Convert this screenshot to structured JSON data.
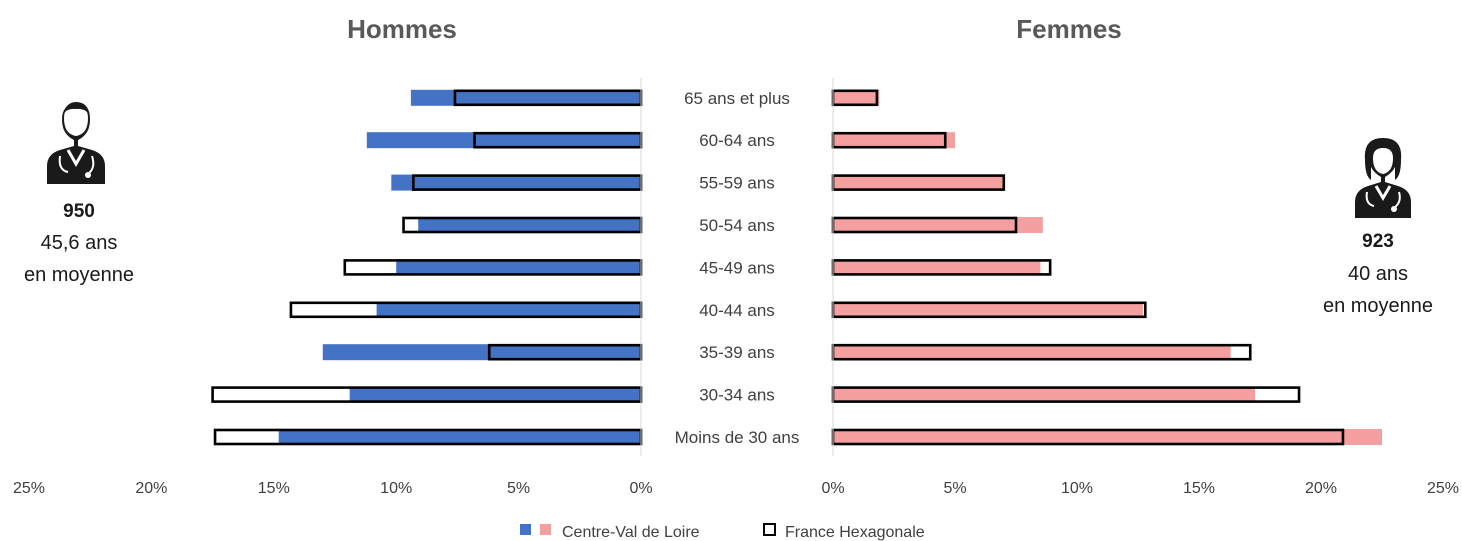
{
  "chart_data": {
    "type": "bar",
    "orientation": "horizontal",
    "layout": "population-pyramid",
    "categories": [
      "Moins de 30 ans",
      "30-34 ans",
      "35-39 ans",
      "40-44 ans",
      "45-49 ans",
      "50-54 ans",
      "55-59 ans",
      "60-64 ans",
      "65 ans et plus"
    ],
    "xlim": [
      0,
      25
    ],
    "x_ticks": [
      "0%",
      "5%",
      "10%",
      "15%",
      "20%",
      "25%"
    ],
    "panels": [
      {
        "title": "Hommes",
        "side": "left",
        "series": [
          {
            "name": "Centre-Val de Loire",
            "color": "#4472C4",
            "values": [
              14.8,
              11.9,
              13.0,
              10.8,
              10.0,
              9.1,
              10.2,
              11.2,
              9.4
            ]
          },
          {
            "name": "France Hexagonale",
            "style": "outline",
            "values": [
              17.4,
              17.5,
              6.2,
              14.3,
              12.1,
              9.7,
              9.3,
              6.8,
              7.6
            ]
          }
        ]
      },
      {
        "title": "Femmes",
        "side": "right",
        "series": [
          {
            "name": "Centre-Val de Loire",
            "color": "#F4A0A0",
            "values": [
              22.5,
              17.3,
              16.3,
              12.7,
              8.5,
              8.6,
              7.0,
              5.0,
              1.9
            ]
          },
          {
            "name": "France Hexagonale",
            "style": "outline",
            "values": [
              20.9,
              19.1,
              17.1,
              12.8,
              8.9,
              7.5,
              7.0,
              4.6,
              1.8
            ]
          }
        ]
      }
    ],
    "legend": {
      "position": "bottom",
      "entries": [
        {
          "label": "Centre-Val de Loire",
          "colors": [
            "#4472C4",
            "#F4A0A0"
          ]
        },
        {
          "label": "France Hexagonale",
          "style": "outline"
        }
      ]
    }
  },
  "side_stats": {
    "men": {
      "count": "950",
      "age": "45,6 ans",
      "note": "en moyenne",
      "icon": "male-doctor-icon"
    },
    "women": {
      "count": "923",
      "age": "40 ans",
      "note": "en moyenne",
      "icon": "female-doctor-icon"
    }
  }
}
